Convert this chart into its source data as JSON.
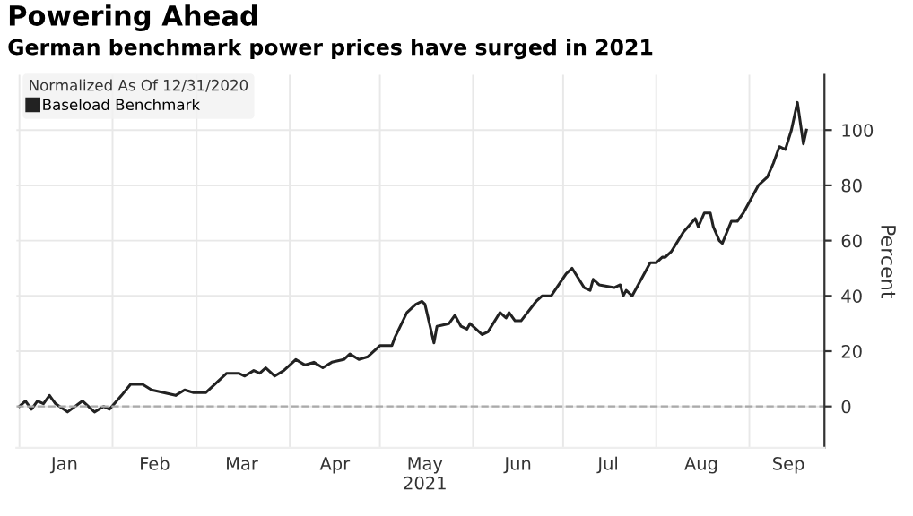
{
  "chart_data": {
    "type": "line",
    "title": "Powering Ahead",
    "subtitle": "German benchmark power prices have surged in 2021",
    "ylabel": "Percent",
    "legend_title": "Normalized As Of 12/31/2020",
    "legend": "top left",
    "grid": true,
    "line_style": "solid",
    "xlim": [
      "2020-12-31",
      "2021-09-26"
    ],
    "ylim": [
      -15,
      120
    ],
    "yticks": [
      0,
      20,
      40,
      60,
      80,
      100
    ],
    "xticks": [
      {
        "value": "2021-01-01",
        "label": null
      },
      {
        "value": "2021-01-16",
        "label": "Jan"
      },
      {
        "value": "2021-02-01",
        "label": null
      },
      {
        "value": "2021-02-15",
        "label": "Feb"
      },
      {
        "value": "2021-03-01",
        "label": null
      },
      {
        "value": "2021-03-16",
        "label": "Mar"
      },
      {
        "value": "2021-04-01",
        "label": null
      },
      {
        "value": "2021-04-16",
        "label": "Apr"
      },
      {
        "value": "2021-05-01",
        "label": null
      },
      {
        "value": "2021-05-16",
        "label": "May\n2021"
      },
      {
        "value": "2021-06-01",
        "label": null
      },
      {
        "value": "2021-06-16",
        "label": "Jun"
      },
      {
        "value": "2021-07-01",
        "label": null
      },
      {
        "value": "2021-07-16",
        "label": "Jul"
      },
      {
        "value": "2021-08-01",
        "label": null
      },
      {
        "value": "2021-08-16",
        "label": "Aug"
      },
      {
        "value": "2021-09-01",
        "label": null
      },
      {
        "value": "2021-09-14",
        "label": "Sep"
      }
    ],
    "ref_lines": [
      {
        "axis": "y",
        "value": 0,
        "color": "#aaaaaa",
        "line_style": "dashed"
      }
    ],
    "x": [
      "2021-01-01",
      "2021-01-03",
      "2021-01-05",
      "2021-01-07",
      "2021-01-09",
      "2021-01-11",
      "2021-01-13",
      "2021-01-17",
      "2021-01-22",
      "2021-01-26",
      "2021-01-29",
      "2021-01-31",
      "2021-02-04",
      "2021-02-07",
      "2021-02-11",
      "2021-02-14",
      "2021-02-18",
      "2021-02-22",
      "2021-02-25",
      "2021-02-28",
      "2021-03-04",
      "2021-03-07",
      "2021-03-11",
      "2021-03-15",
      "2021-03-17",
      "2021-03-20",
      "2021-03-22",
      "2021-03-24",
      "2021-03-27",
      "2021-03-30",
      "2021-04-03",
      "2021-04-06",
      "2021-04-09",
      "2021-04-12",
      "2021-04-15",
      "2021-04-19",
      "2021-04-21",
      "2021-04-24",
      "2021-04-27",
      "2021-05-01",
      "2021-05-05",
      "2021-05-06",
      "2021-05-10",
      "2021-05-12",
      "2021-05-13",
      "2021-05-15",
      "2021-05-16",
      "2021-05-19",
      "2021-05-20",
      "2021-05-24",
      "2021-05-26",
      "2021-05-28",
      "2021-05-30",
      "2021-05-31",
      "2021-06-04",
      "2021-06-06",
      "2021-06-10",
      "2021-06-12",
      "2021-06-13",
      "2021-06-15",
      "2021-06-17",
      "2021-06-22",
      "2021-06-24",
      "2021-06-27",
      "2021-07-02",
      "2021-07-04",
      "2021-07-08",
      "2021-07-10",
      "2021-07-11",
      "2021-07-13",
      "2021-07-18",
      "2021-07-20",
      "2021-07-21",
      "2021-07-22",
      "2021-07-24",
      "2021-07-27",
      "2021-07-30",
      "2021-08-01",
      "2021-08-03",
      "2021-08-04",
      "2021-08-06",
      "2021-08-10",
      "2021-08-14",
      "2021-08-15",
      "2021-08-17",
      "2021-08-19",
      "2021-08-20",
      "2021-08-22",
      "2021-08-23",
      "2021-08-26",
      "2021-08-28",
      "2021-08-30",
      "2021-09-01",
      "2021-09-04",
      "2021-09-07",
      "2021-09-09",
      "2021-09-11",
      "2021-09-13",
      "2021-09-15",
      "2021-09-17",
      "2021-09-19",
      "2021-09-20"
    ],
    "series": [
      {
        "name": "Baseload Benchmark",
        "color": "#222222",
        "values": [
          0,
          2,
          -1,
          2,
          1,
          4,
          1,
          -2,
          2,
          -2,
          0,
          -1,
          4,
          8,
          8,
          6,
          5,
          4,
          6,
          5,
          5,
          8,
          12,
          12,
          11,
          13,
          12,
          14,
          11,
          13,
          17,
          15,
          16,
          14,
          16,
          17,
          19,
          17,
          18,
          22,
          22,
          25,
          34,
          36,
          37,
          38,
          37,
          23,
          29,
          30,
          33,
          29,
          28,
          30,
          26,
          27,
          34,
          32,
          34,
          31,
          31,
          38,
          40,
          40,
          48,
          50,
          43,
          42,
          46,
          44,
          43,
          44,
          40,
          42,
          40,
          46,
          52,
          52,
          54,
          54,
          56,
          63,
          68,
          65,
          70,
          70,
          65,
          60,
          59,
          67,
          67,
          70,
          74,
          80,
          83,
          88,
          94,
          93,
          100,
          110,
          95,
          100
        ]
      }
    ]
  }
}
